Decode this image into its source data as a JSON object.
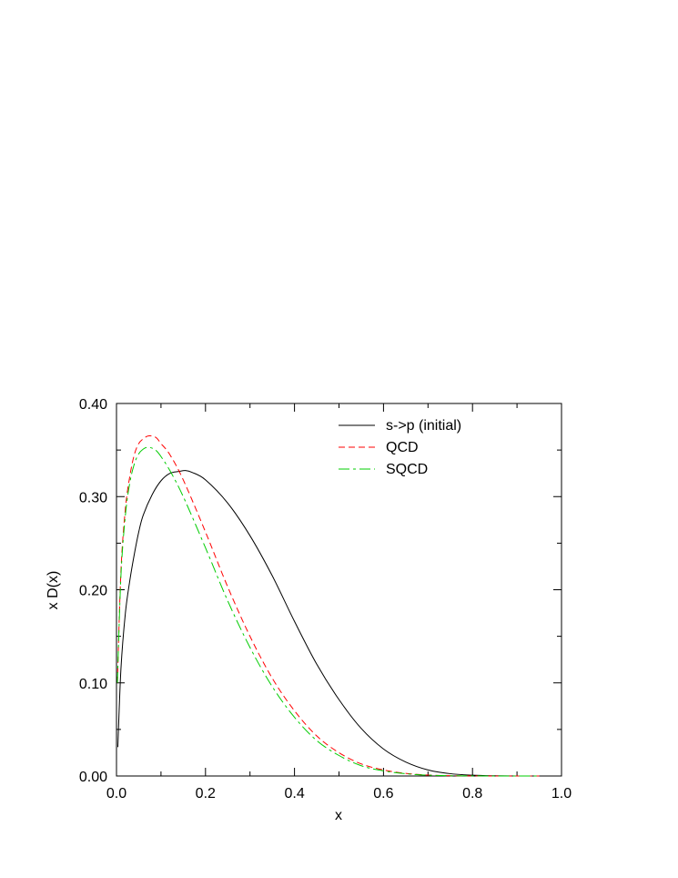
{
  "chart_data": {
    "type": "line",
    "title": "",
    "xlabel": "x",
    "ylabel": "x D(x)",
    "xlim": [
      0.0,
      1.0
    ],
    "ylim": [
      0.0,
      0.4
    ],
    "x_ticks": [
      "0.0",
      "0.2",
      "0.4",
      "0.6",
      "0.8",
      "1.0"
    ],
    "y_ticks": [
      "0.00",
      "0.10",
      "0.20",
      "0.30",
      "0.40"
    ],
    "grid": false,
    "legend_position": "top-right",
    "series": [
      {
        "name": "s->p (initial)",
        "color": "#000000",
        "style": "solid",
        "x": [
          0.003,
          0.01,
          0.02,
          0.03,
          0.04,
          0.05,
          0.06,
          0.08,
          0.1,
          0.12,
          0.14,
          0.155,
          0.17,
          0.2,
          0.25,
          0.3,
          0.35,
          0.4,
          0.45,
          0.5,
          0.55,
          0.6,
          0.65,
          0.7,
          0.75,
          0.8,
          0.85,
          0.9,
          0.95
        ],
        "y": [
          0.031,
          0.115,
          0.175,
          0.21,
          0.238,
          0.262,
          0.28,
          0.302,
          0.317,
          0.325,
          0.327,
          0.328,
          0.326,
          0.318,
          0.293,
          0.258,
          0.215,
          0.166,
          0.12,
          0.082,
          0.051,
          0.029,
          0.015,
          0.0065,
          0.0025,
          0.0008,
          0.0002,
          0.0,
          0.0
        ]
      },
      {
        "name": "QCD",
        "color": "#ff0000",
        "style": "dashed",
        "x": [
          0.002,
          0.01,
          0.02,
          0.03,
          0.04,
          0.05,
          0.06,
          0.07,
          0.08,
          0.09,
          0.1,
          0.12,
          0.15,
          0.2,
          0.25,
          0.3,
          0.35,
          0.4,
          0.45,
          0.5,
          0.55,
          0.6,
          0.65,
          0.7,
          0.75,
          0.8,
          0.85,
          0.9,
          0.95
        ],
        "y": [
          0.1,
          0.22,
          0.287,
          0.322,
          0.345,
          0.357,
          0.362,
          0.365,
          0.365,
          0.363,
          0.357,
          0.345,
          0.318,
          0.262,
          0.203,
          0.15,
          0.105,
          0.07,
          0.043,
          0.025,
          0.013,
          0.0065,
          0.0028,
          0.001,
          0.0003,
          0.0001,
          0.0,
          0.0,
          0.0
        ]
      },
      {
        "name": "SQCD",
        "color": "#00cc00",
        "style": "dash-dot",
        "x": [
          0.002,
          0.01,
          0.02,
          0.03,
          0.04,
          0.05,
          0.06,
          0.07,
          0.08,
          0.09,
          0.1,
          0.12,
          0.15,
          0.2,
          0.25,
          0.3,
          0.35,
          0.4,
          0.45,
          0.5,
          0.55,
          0.6,
          0.65,
          0.7,
          0.75,
          0.8,
          0.85,
          0.9,
          0.95
        ],
        "y": [
          0.1,
          0.215,
          0.28,
          0.315,
          0.335,
          0.346,
          0.351,
          0.353,
          0.352,
          0.349,
          0.343,
          0.328,
          0.3,
          0.245,
          0.188,
          0.138,
          0.096,
          0.063,
          0.038,
          0.022,
          0.011,
          0.0055,
          0.0024,
          0.0009,
          0.0003,
          0.0001,
          0.0,
          0.0,
          0.0
        ]
      }
    ]
  }
}
